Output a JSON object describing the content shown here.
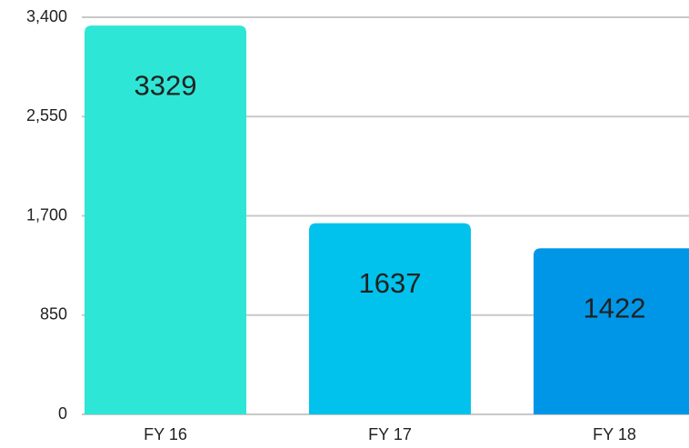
{
  "chart_data": {
    "type": "bar",
    "categories": [
      "FY 16",
      "FY 17",
      "FY 18"
    ],
    "values": [
      3329,
      1637,
      1422
    ],
    "colors": [
      "#2ee6d6",
      "#00c2ec",
      "#0096e8"
    ],
    "ylim": [
      0,
      3400
    ],
    "yticks": [
      0,
      850,
      {
        "value": 1700,
        "label": "1,700"
      },
      {
        "value": 2550,
        "label": "2,550"
      },
      {
        "value": 3400,
        "label": "3,400"
      }
    ],
    "grid": true
  }
}
